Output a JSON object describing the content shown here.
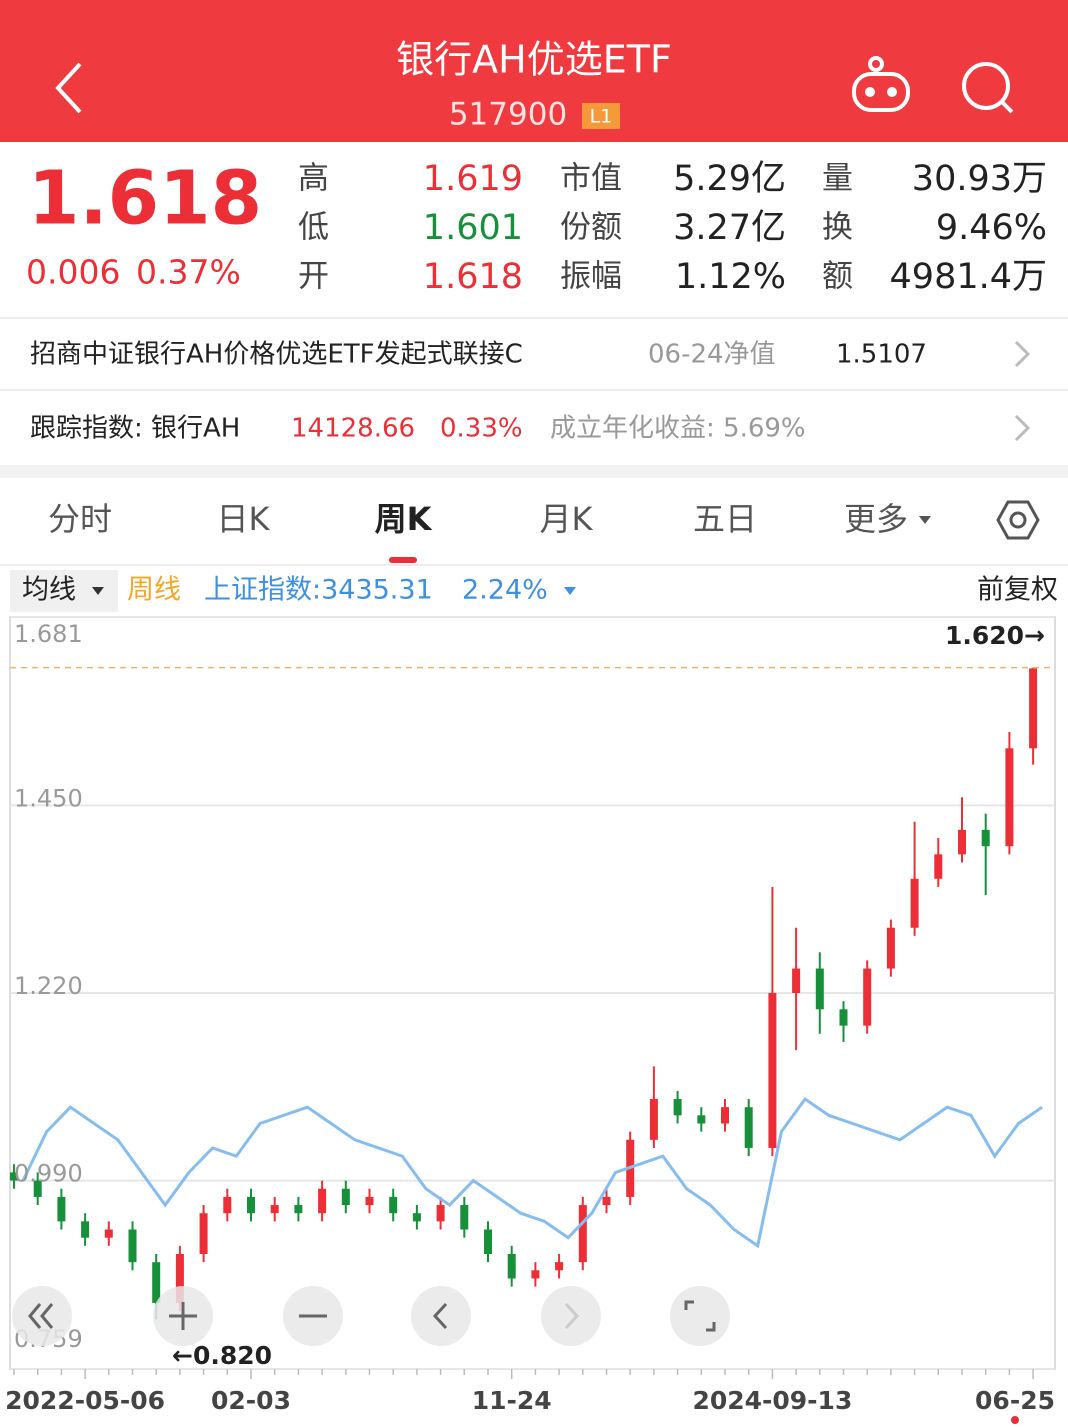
{
  "header": {
    "title": "银行AH优选ETF",
    "code": "517900",
    "badge": "L1"
  },
  "quote": {
    "price": "1.618",
    "change": "0.006",
    "change_pct": "0.37%",
    "stats": [
      [
        "高",
        "1.619",
        "市值",
        "5.29亿",
        "量",
        "30.93万"
      ],
      [
        "低",
        "1.601",
        "份额",
        "3.27亿",
        "换",
        "9.46%"
      ],
      [
        "开",
        "1.618",
        "振幅",
        "1.12%",
        "额",
        "4981.4万"
      ]
    ]
  },
  "info": {
    "fund": "招商中证银行AH价格优选ETF发起式联接C",
    "nav_date": "06-24净值",
    "nav": "1.5107",
    "index_label": "跟踪指数: 银行AH",
    "index_value": "14128.66",
    "index_change": "0.33%",
    "annual": "成立年化收益: 5.69%"
  },
  "tabs": [
    "分时",
    "日K",
    "周K",
    "月K",
    "五日",
    "更多"
  ],
  "toolbar": {
    "ma": "均线",
    "index": "上证指数:3435.31",
    "index_change": "2.24%",
    "adjust": "前复权"
  },
  "chart_data": {
    "type": "candlestick",
    "categories": [
      null,
      null,
      null,
      "2022-05-06",
      null,
      null,
      null,
      null,
      null,
      null,
      "02-03",
      null,
      null,
      null,
      null,
      null,
      null,
      null,
      null,
      null,
      null,
      "11-24",
      null,
      null,
      null,
      null,
      null,
      null,
      null,
      null,
      null,
      null,
      "2024-09-13",
      null,
      null,
      null,
      null,
      null,
      null,
      null,
      null,
      null,
      null,
      "06-25"
    ],
    "ylim": [
      0.759,
      1.681
    ],
    "yticks": [
      0.759,
      {
        "value": 0.99,
        "label": "0.990"
      },
      {
        "value": 1.22,
        "label": "1.220"
      },
      {
        "value": 1.45,
        "label": "1.450"
      },
      1.681
    ],
    "grid": true,
    "series": [
      {
        "name": "周线",
        "up_color": "#ec2f36",
        "down_color": "#17903a",
        "open": [
          1.0,
          0.99,
          0.97,
          0.94,
          0.92,
          0.93,
          0.89,
          0.84,
          0.9,
          0.95,
          0.97,
          0.95,
          0.96,
          0.95,
          0.98,
          0.96,
          0.97,
          0.95,
          0.94,
          0.96,
          0.93,
          0.9,
          0.87,
          0.88,
          0.89,
          0.96,
          0.97,
          1.04,
          1.09,
          1.07,
          1.06,
          1.08,
          1.03,
          1.22,
          1.25,
          1.2,
          1.18,
          1.25,
          1.3,
          1.36,
          1.39,
          1.42,
          1.4,
          1.52
        ],
        "close": [
          0.99,
          0.97,
          0.94,
          0.92,
          0.93,
          0.89,
          0.84,
          0.9,
          0.95,
          0.97,
          0.95,
          0.96,
          0.95,
          0.98,
          0.96,
          0.97,
          0.95,
          0.94,
          0.96,
          0.93,
          0.9,
          0.87,
          0.88,
          0.89,
          0.96,
          0.97,
          1.04,
          1.09,
          1.07,
          1.06,
          1.08,
          1.03,
          1.22,
          1.25,
          1.2,
          1.18,
          1.25,
          1.3,
          1.36,
          1.39,
          1.42,
          1.4,
          1.52,
          1.618
        ],
        "high": [
          1.01,
          1.0,
          0.98,
          0.95,
          0.94,
          0.94,
          0.9,
          0.91,
          0.96,
          0.98,
          0.98,
          0.97,
          0.97,
          0.99,
          0.99,
          0.98,
          0.98,
          0.96,
          0.97,
          0.97,
          0.94,
          0.91,
          0.89,
          0.9,
          0.97,
          0.98,
          1.05,
          1.13,
          1.1,
          1.08,
          1.09,
          1.09,
          1.35,
          1.3,
          1.27,
          1.21,
          1.26,
          1.31,
          1.43,
          1.41,
          1.46,
          1.44,
          1.54,
          1.619
        ],
        "low": [
          0.98,
          0.96,
          0.93,
          0.91,
          0.91,
          0.88,
          0.82,
          0.83,
          0.89,
          0.94,
          0.94,
          0.94,
          0.94,
          0.94,
          0.95,
          0.95,
          0.94,
          0.93,
          0.93,
          0.92,
          0.89,
          0.86,
          0.86,
          0.87,
          0.88,
          0.95,
          0.96,
          1.03,
          1.06,
          1.05,
          1.05,
          1.02,
          1.02,
          1.15,
          1.17,
          1.16,
          1.17,
          1.24,
          1.29,
          1.35,
          1.38,
          1.34,
          1.39,
          1.5
        ]
      },
      {
        "color": "#86bdf0",
        "values": [
          0.99,
          1.05,
          1.08,
          1.06,
          1.04,
          1.0,
          0.96,
          1.0,
          1.03,
          1.02,
          1.06,
          1.07,
          1.08,
          1.06,
          1.04,
          1.03,
          1.02,
          0.98,
          0.96,
          0.99,
          0.97,
          0.95,
          0.94,
          0.92,
          0.95,
          1.0,
          1.01,
          1.02,
          0.98,
          0.96,
          0.93,
          0.91,
          1.05,
          1.09,
          1.07,
          1.06,
          1.05,
          1.04,
          1.06,
          1.08,
          1.07,
          1.02,
          1.06,
          1.08
        ]
      }
    ],
    "max_label": "1.620→",
    "min_label": "←0.820"
  }
}
